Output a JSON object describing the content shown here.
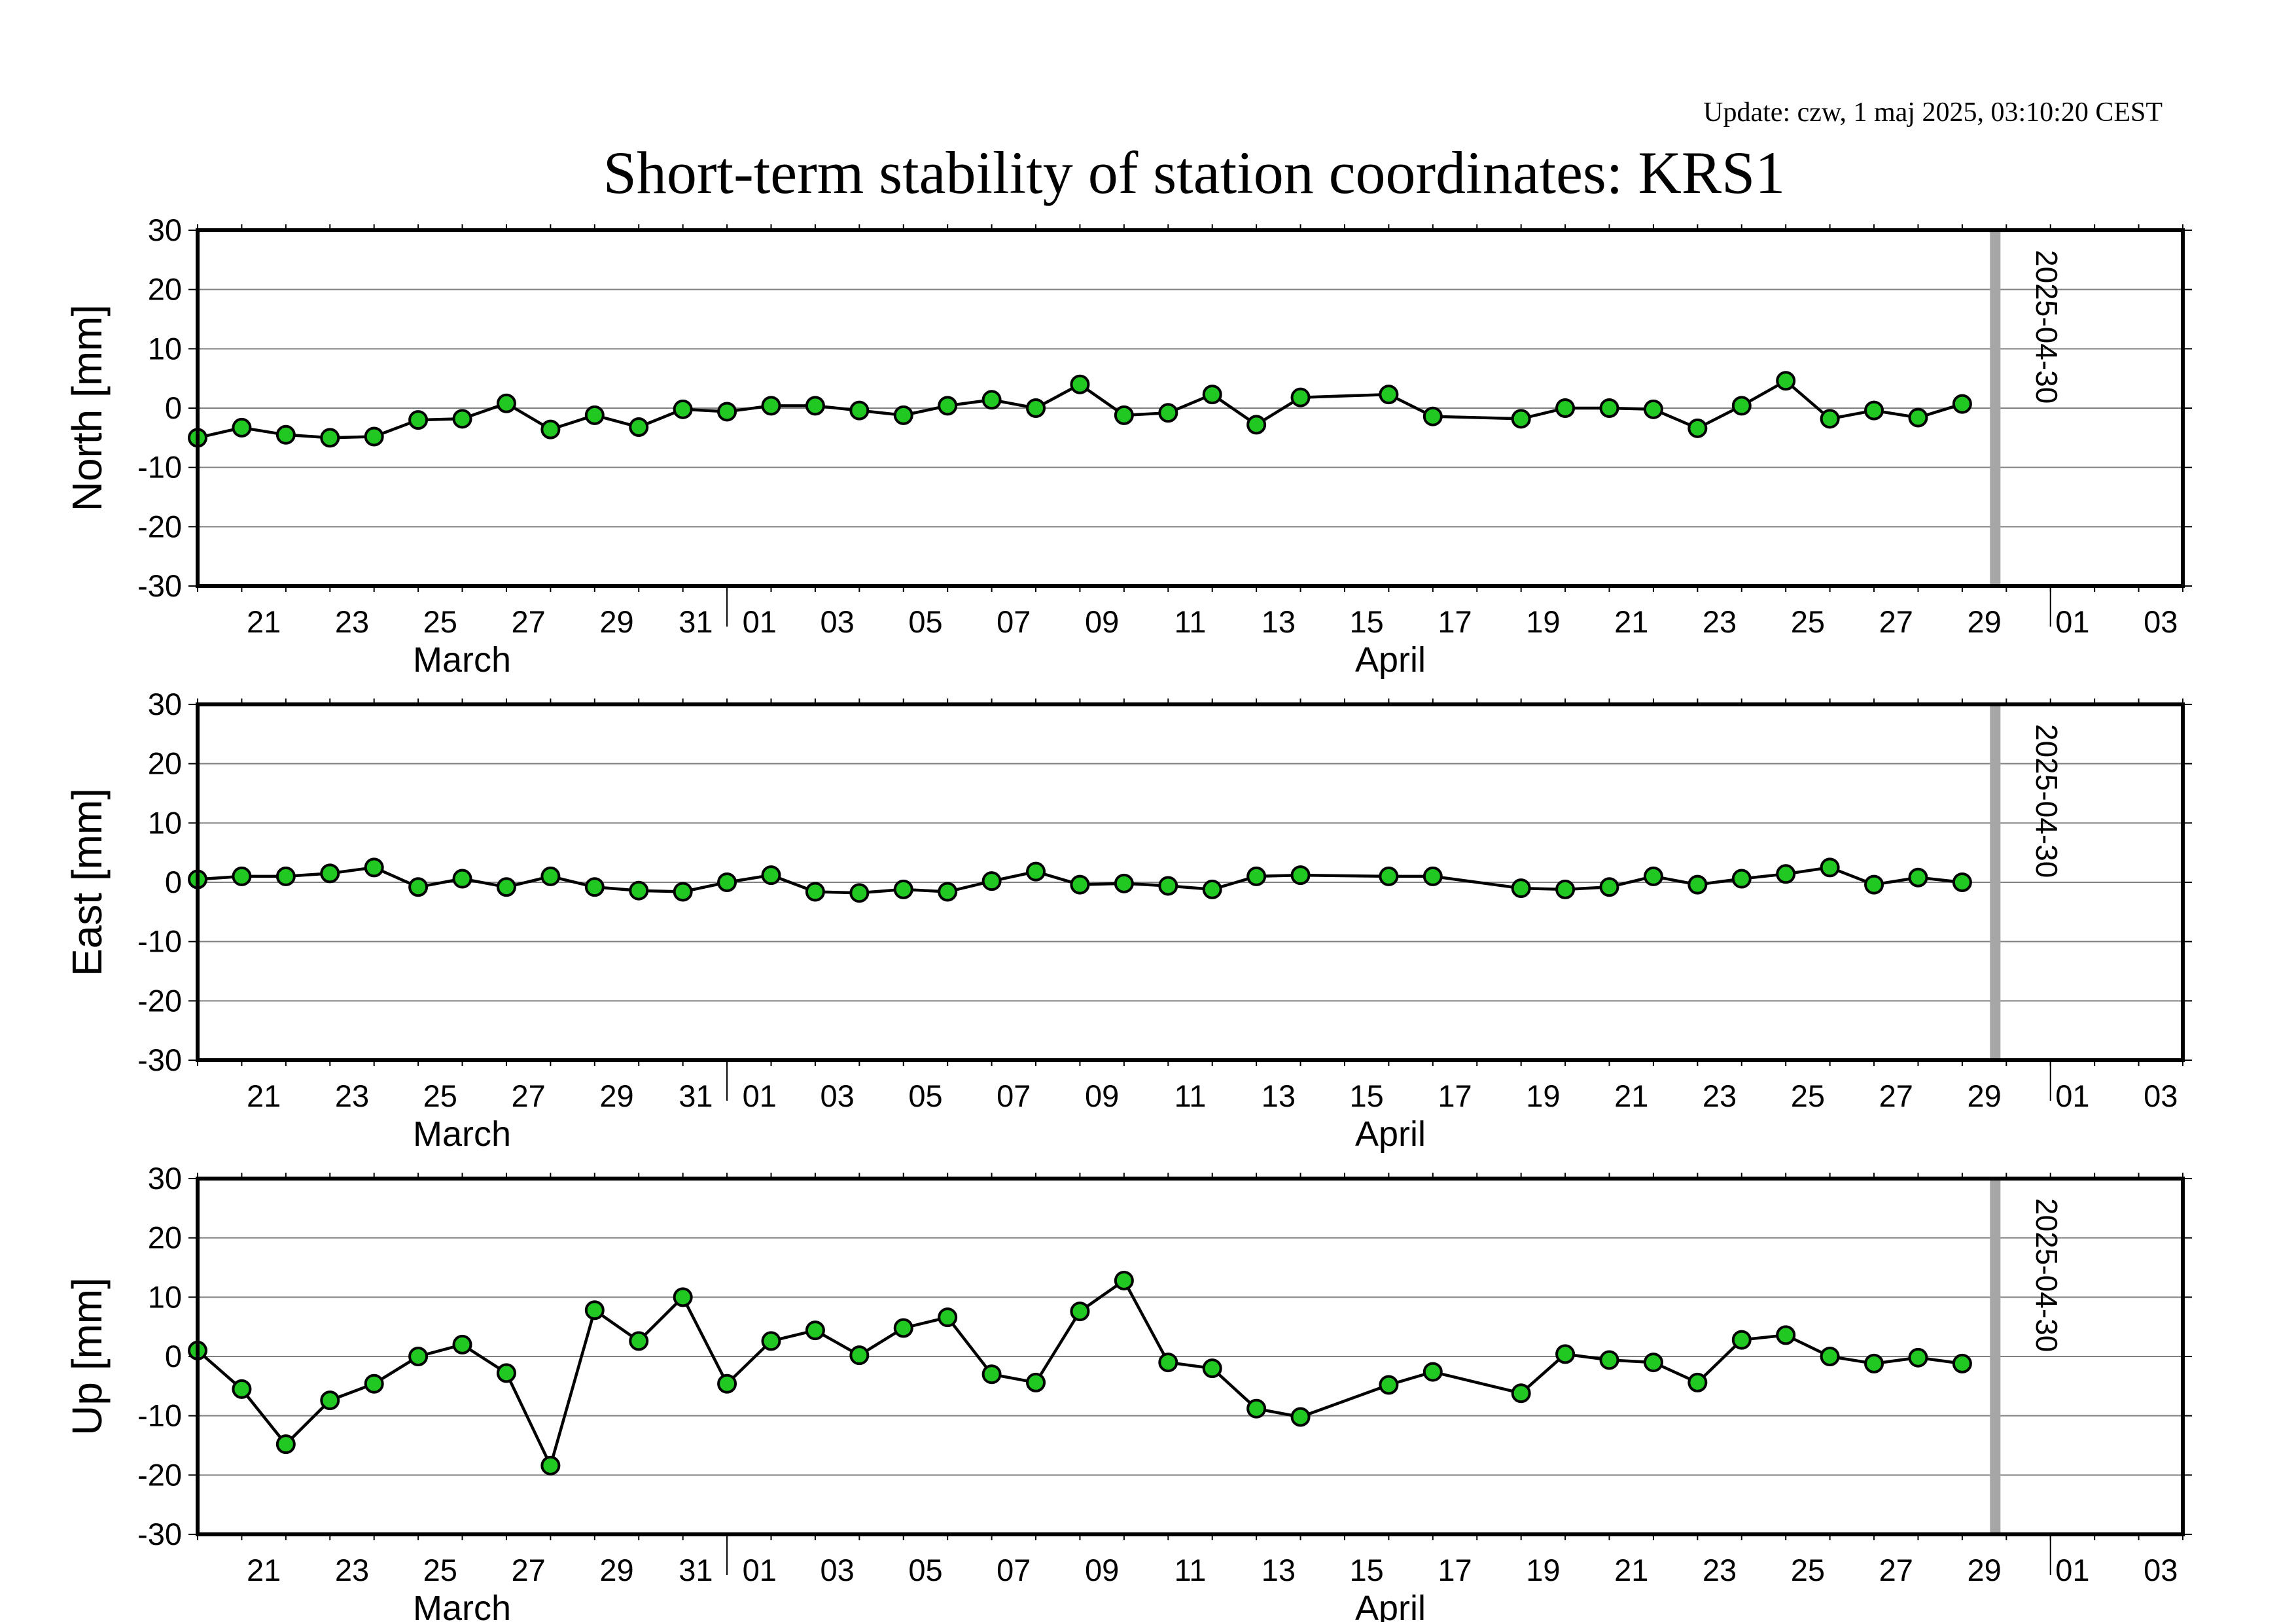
{
  "title": "Short-term stability of station coordinates: KRS1",
  "update_text": "Update: czw, 1 maj 2025, 03:10:20 CEST",
  "colors": {
    "update": "#8b1a1a",
    "marker_fill": "#22c822",
    "marker_stroke": "#000000",
    "line": "#000000",
    "grid": "#7f7f7f",
    "current_date_bar": "#a6a6a6"
  },
  "chart_data": [
    {
      "type": "line",
      "ylabel": "North [mm]",
      "ylim": [
        -30,
        30
      ],
      "yticks": [
        30,
        20,
        10,
        0,
        -10,
        -20,
        -30
      ],
      "xlim": [
        "2025-03-20",
        "2025-05-04"
      ],
      "x_tick_labels": [
        "21",
        "23",
        "25",
        "27",
        "29",
        "31",
        "01",
        "03",
        "05",
        "07",
        "09",
        "11",
        "13",
        "15",
        "17",
        "19",
        "21",
        "23",
        "25",
        "27",
        "29",
        "01",
        "03"
      ],
      "month_labels": [
        "March",
        "April"
      ],
      "marker_date_label": "2025-04-30",
      "grid": true,
      "x": [
        "2025-03-20",
        "2025-03-21",
        "2025-03-22",
        "2025-03-23",
        "2025-03-24",
        "2025-03-25",
        "2025-03-26",
        "2025-03-27",
        "2025-03-28",
        "2025-03-29",
        "2025-03-30",
        "2025-03-31",
        "2025-04-01",
        "2025-04-02",
        "2025-04-03",
        "2025-04-04",
        "2025-04-05",
        "2025-04-06",
        "2025-04-07",
        "2025-04-08",
        "2025-04-09",
        "2025-04-10",
        "2025-04-11",
        "2025-04-12",
        "2025-04-13",
        "2025-04-14",
        "2025-04-16",
        "2025-04-17",
        "2025-04-19",
        "2025-04-20",
        "2025-04-21",
        "2025-04-22",
        "2025-04-23",
        "2025-04-24",
        "2025-04-25",
        "2025-04-26",
        "2025-04-27",
        "2025-04-28",
        "2025-04-29"
      ],
      "y": [
        -5.0,
        -3.3,
        -4.5,
        -5.0,
        -4.8,
        -2.0,
        -1.8,
        0.8,
        -3.6,
        -1.2,
        -3.2,
        -0.2,
        -0.6,
        0.4,
        0.4,
        -0.4,
        -1.2,
        0.4,
        1.4,
        0.0,
        4.0,
        -1.2,
        -0.8,
        2.3,
        -2.8,
        1.8,
        2.3,
        -1.4,
        -1.8,
        0.0,
        0.0,
        -0.2,
        -3.4,
        0.4,
        4.6,
        -1.8,
        -0.4,
        -1.6,
        0.7
      ]
    },
    {
      "type": "line",
      "ylabel": "East [mm]",
      "ylim": [
        -30,
        30
      ],
      "yticks": [
        30,
        20,
        10,
        0,
        -10,
        -20,
        -30
      ],
      "xlim": [
        "2025-03-20",
        "2025-05-04"
      ],
      "x_tick_labels": [
        "21",
        "23",
        "25",
        "27",
        "29",
        "31",
        "01",
        "03",
        "05",
        "07",
        "09",
        "11",
        "13",
        "15",
        "17",
        "19",
        "21",
        "23",
        "25",
        "27",
        "29",
        "01",
        "03"
      ],
      "month_labels": [
        "March",
        "April"
      ],
      "marker_date_label": "2025-04-30",
      "grid": true,
      "x": [
        "2025-03-20",
        "2025-03-21",
        "2025-03-22",
        "2025-03-23",
        "2025-03-24",
        "2025-03-25",
        "2025-03-26",
        "2025-03-27",
        "2025-03-28",
        "2025-03-29",
        "2025-03-30",
        "2025-03-31",
        "2025-04-01",
        "2025-04-02",
        "2025-04-03",
        "2025-04-04",
        "2025-04-05",
        "2025-04-06",
        "2025-04-07",
        "2025-04-08",
        "2025-04-09",
        "2025-04-10",
        "2025-04-11",
        "2025-04-12",
        "2025-04-13",
        "2025-04-14",
        "2025-04-16",
        "2025-04-17",
        "2025-04-19",
        "2025-04-20",
        "2025-04-21",
        "2025-04-22",
        "2025-04-23",
        "2025-04-24",
        "2025-04-25",
        "2025-04-26",
        "2025-04-27",
        "2025-04-28",
        "2025-04-29"
      ],
      "y": [
        0.5,
        1.0,
        1.0,
        1.5,
        2.5,
        -0.8,
        0.6,
        -0.8,
        1.0,
        -0.8,
        -1.4,
        -1.6,
        0.0,
        1.2,
        -1.6,
        -1.8,
        -1.2,
        -1.6,
        0.2,
        1.8,
        -0.4,
        -0.2,
        -0.6,
        -1.2,
        1.0,
        1.2,
        1.0,
        1.0,
        -1.0,
        -1.2,
        -0.8,
        1.0,
        -0.4,
        0.6,
        1.4,
        2.5,
        -0.4,
        0.8,
        0.0
      ]
    },
    {
      "type": "line",
      "ylabel": "Up [mm]",
      "ylim": [
        -30,
        30
      ],
      "yticks": [
        30,
        20,
        10,
        0,
        -10,
        -20,
        -30
      ],
      "xlim": [
        "2025-03-20",
        "2025-05-04"
      ],
      "x_tick_labels": [
        "21",
        "23",
        "25",
        "27",
        "29",
        "31",
        "01",
        "03",
        "05",
        "07",
        "09",
        "11",
        "13",
        "15",
        "17",
        "19",
        "21",
        "23",
        "25",
        "27",
        "29",
        "01",
        "03"
      ],
      "month_labels": [
        "March",
        "April"
      ],
      "marker_date_label": "2025-04-30",
      "grid": true,
      "x": [
        "2025-03-20",
        "2025-03-21",
        "2025-03-22",
        "2025-03-23",
        "2025-03-24",
        "2025-03-25",
        "2025-03-26",
        "2025-03-27",
        "2025-03-28",
        "2025-03-29",
        "2025-03-30",
        "2025-03-31",
        "2025-04-01",
        "2025-04-02",
        "2025-04-03",
        "2025-04-04",
        "2025-04-05",
        "2025-04-06",
        "2025-04-07",
        "2025-04-08",
        "2025-04-09",
        "2025-04-10",
        "2025-04-11",
        "2025-04-12",
        "2025-04-13",
        "2025-04-14",
        "2025-04-16",
        "2025-04-17",
        "2025-04-19",
        "2025-04-20",
        "2025-04-21",
        "2025-04-22",
        "2025-04-23",
        "2025-04-24",
        "2025-04-25",
        "2025-04-26",
        "2025-04-27",
        "2025-04-28",
        "2025-04-29"
      ],
      "y": [
        1.0,
        -5.5,
        -14.8,
        -7.4,
        -4.6,
        0.0,
        2.0,
        -2.8,
        -18.4,
        7.8,
        2.6,
        10.0,
        -4.6,
        2.6,
        4.4,
        0.2,
        4.8,
        6.6,
        -3.0,
        -4.4,
        7.6,
        12.8,
        -1.0,
        -2.0,
        -8.8,
        -10.2,
        -4.8,
        -2.6,
        -6.2,
        0.4,
        -0.6,
        -1.0,
        -4.4,
        2.8,
        3.6,
        0.0,
        -1.2,
        -0.2,
        -1.2
      ]
    }
  ]
}
